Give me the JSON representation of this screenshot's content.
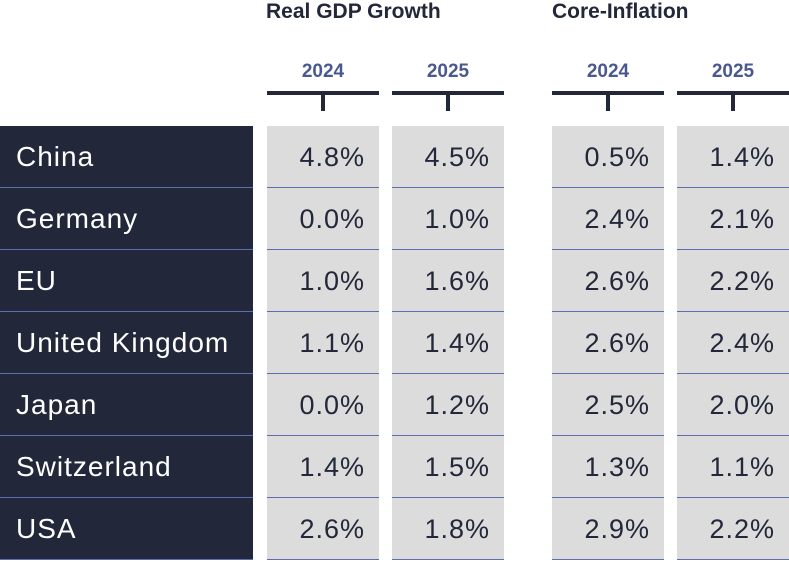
{
  "chart_data": {
    "type": "table",
    "column_groups": [
      {
        "title": "Real GDP Growth",
        "years": [
          "2024",
          "2025"
        ]
      },
      {
        "title": "Core-Inflation",
        "years": [
          "2024",
          "2025"
        ]
      }
    ],
    "rows": [
      {
        "country": "China",
        "values": [
          "4.8%",
          "4.5%",
          "0.5%",
          "1.4%"
        ]
      },
      {
        "country": "Germany",
        "values": [
          "0.0%",
          "1.0%",
          "2.4%",
          "2.1%"
        ]
      },
      {
        "country": "EU",
        "values": [
          "1.0%",
          "1.6%",
          "2.6%",
          "2.2%"
        ]
      },
      {
        "country": "United Kingdom",
        "values": [
          "1.1%",
          "1.4%",
          "2.6%",
          "2.4%"
        ]
      },
      {
        "country": "Japan",
        "values": [
          "0.0%",
          "1.2%",
          "2.5%",
          "2.0%"
        ]
      },
      {
        "country": "Switzerland",
        "values": [
          "1.4%",
          "1.5%",
          "1.3%",
          "1.1%"
        ]
      },
      {
        "country": "USA",
        "values": [
          "2.6%",
          "1.8%",
          "2.9%",
          "2.2%"
        ]
      }
    ],
    "series": [
      {
        "name": "Real GDP Growth 2024",
        "values": [
          4.8,
          0.0,
          1.0,
          1.1,
          0.0,
          1.4,
          2.6
        ]
      },
      {
        "name": "Real GDP Growth 2025",
        "values": [
          4.5,
          1.0,
          1.6,
          1.4,
          1.2,
          1.5,
          1.8
        ]
      },
      {
        "name": "Core-Inflation 2024",
        "values": [
          0.5,
          2.4,
          2.6,
          2.6,
          2.5,
          1.3,
          2.9
        ]
      },
      {
        "name": "Core-Inflation 2025",
        "values": [
          1.4,
          2.1,
          2.2,
          2.4,
          2.0,
          1.1,
          2.2
        ]
      }
    ],
    "colors": {
      "country_background": "#22283a",
      "country_text": "#ffffff",
      "cell_background": "#dcdcdc",
      "row_divider": "#5b6fb0",
      "header_text": "#22283a",
      "year_text": "#4a5890"
    }
  }
}
